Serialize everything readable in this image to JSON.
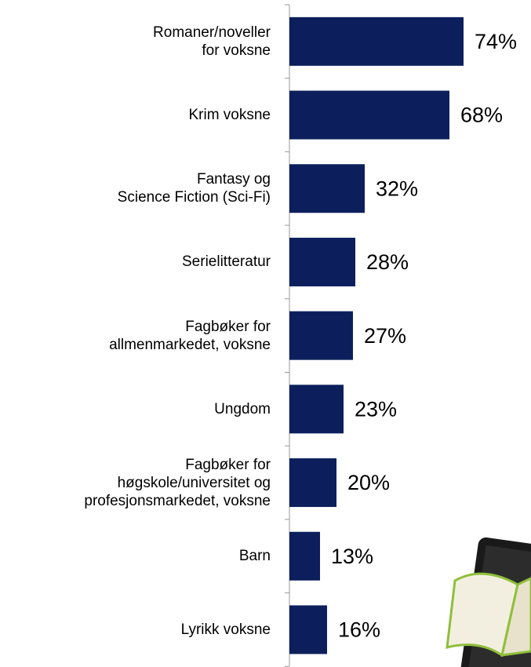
{
  "chart_data": {
    "type": "bar",
    "orientation": "horizontal",
    "categories": [
      "Romaner/noveller\nfor voksne",
      "Krim voksne",
      "Fantasy og\nScience Fiction (Sci-Fi)",
      "Serielitteratur",
      "Fagbøker for\nallmenmarkedet, voksne",
      "Ungdom",
      "Fagbøker for\nhøgskole/universitet og\nprofesjonsmarkedet, voksne",
      "Barn",
      "Lyrikk voksne"
    ],
    "values": [
      74,
      68,
      32,
      28,
      27,
      23,
      20,
      13,
      16
    ],
    "value_labels": [
      "74%",
      "68%",
      "32%",
      "28%",
      "27%",
      "23%",
      "20%",
      "13%",
      "16%"
    ],
    "color": "#0c1f5c",
    "xlim": [
      0,
      100
    ]
  }
}
